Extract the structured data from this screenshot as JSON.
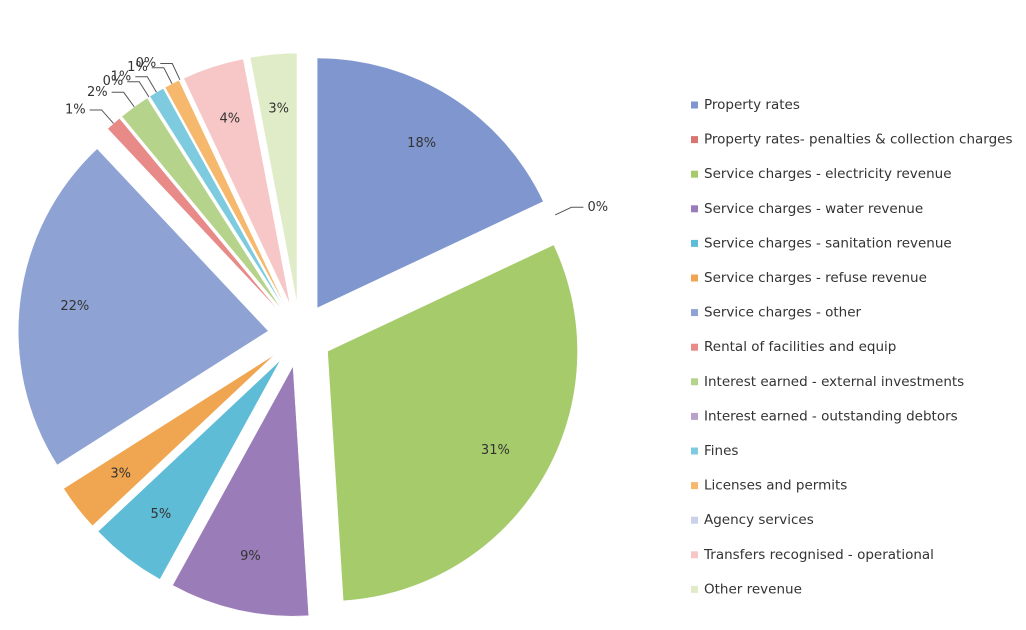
{
  "chart_data": {
    "type": "pie",
    "categories": [
      "Property rates",
      "Property rates- penalties & collection charges",
      "Service charges - electricity revenue",
      "Service charges - water revenue",
      "Service charges - sanitation revenue",
      "Service charges - refuse revenue",
      "Service charges - other",
      "Rental of facilities and equip",
      "Interest earned - external investments",
      "Interest earned -  outstanding debtors",
      "Fines",
      "Licenses and permits",
      "Agency services",
      "Transfers recognised - operational",
      "Other revenue"
    ],
    "values": [
      18,
      0,
      31,
      9,
      5,
      3,
      22,
      1,
      2,
      0,
      1,
      1,
      0,
      4,
      3
    ],
    "value_labels": [
      "18%",
      "0%",
      "31%",
      "9%",
      "5%",
      "3%",
      "22%",
      "1%",
      "2%",
      "0%",
      "1%",
      "1%",
      "0%",
      "4%",
      "3%"
    ],
    "colors": [
      "#7f96cf",
      "#d9756f",
      "#a6cb6b",
      "#9a7cb8",
      "#5fbcd6",
      "#f0a650",
      "#8ea3d4",
      "#e88a88",
      "#b5d38a",
      "#b9a2ca",
      "#7ecbe0",
      "#f5b86c",
      "#c9d1eb",
      "#f6c7c6",
      "#e0ecc8"
    ],
    "legend": "right"
  }
}
